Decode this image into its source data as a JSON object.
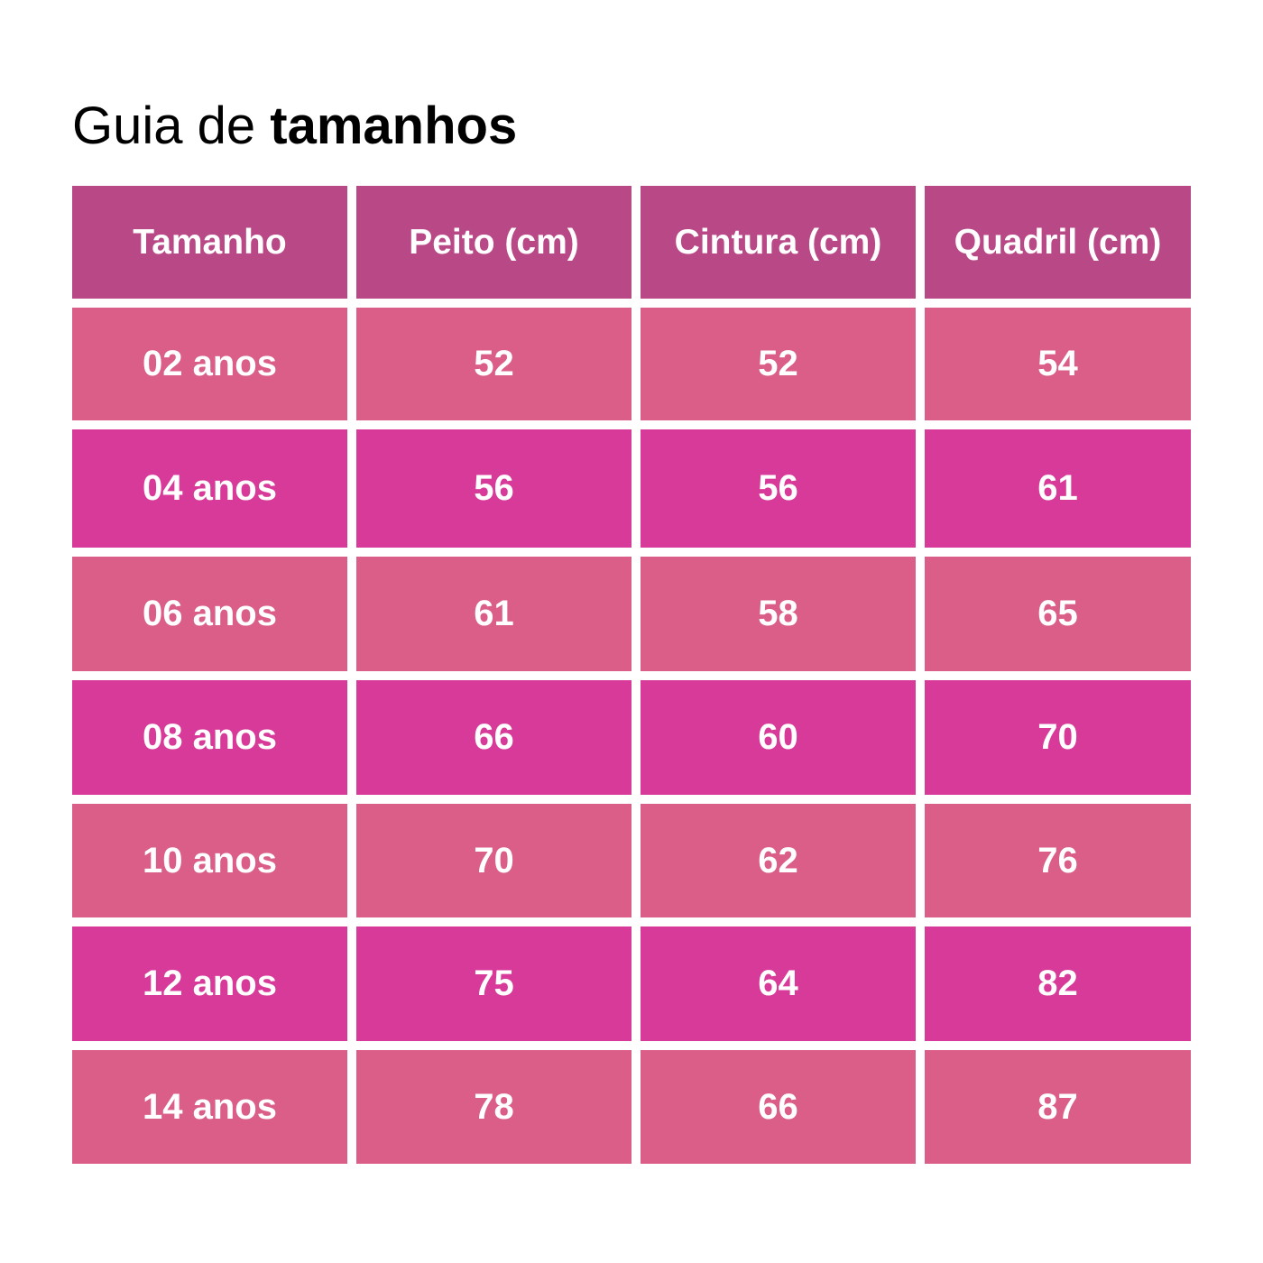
{
  "title": {
    "regular": "Guia de ",
    "bold": "tamanhos"
  },
  "colors": {
    "header_bg": "#b94886",
    "row_light_bg": "#da5e88",
    "row_dark_bg": "#d73a98",
    "text": "#ffffff"
  },
  "table": {
    "headers": [
      "Tamanho",
      "Peito (cm)",
      "Cintura (cm)",
      "Quadril (cm)"
    ],
    "rows": [
      [
        "02 anos",
        "52",
        "52",
        "54"
      ],
      [
        "04 anos",
        "56",
        "56",
        "61"
      ],
      [
        "06 anos",
        "61",
        "58",
        "65"
      ],
      [
        "08 anos",
        "66",
        "60",
        "70"
      ],
      [
        "10 anos",
        "70",
        "62",
        "76"
      ],
      [
        "12 anos",
        "75",
        "64",
        "82"
      ],
      [
        "14 anos",
        "78",
        "66",
        "87"
      ]
    ]
  }
}
